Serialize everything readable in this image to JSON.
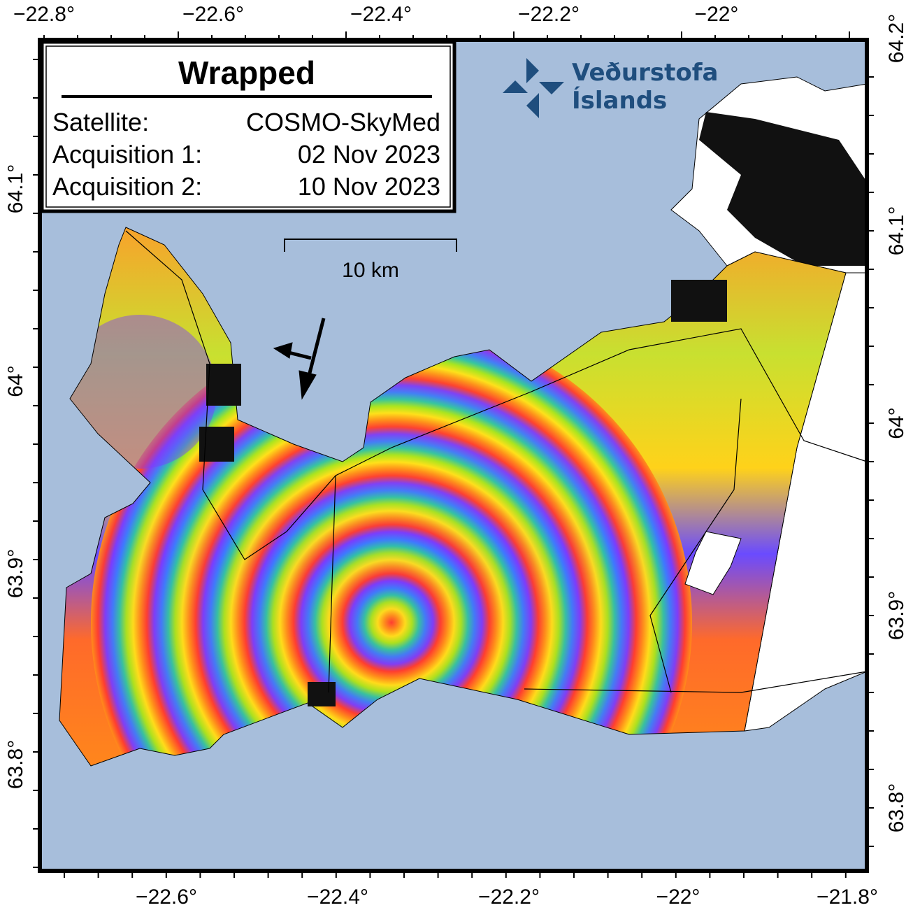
{
  "map": {
    "colors": {
      "sea": "#a7bedb",
      "frame": "#000000",
      "land_uncovered": "#ffffff",
      "logo": "#1f4e7e"
    },
    "fringe_palette": [
      "#ff3b30",
      "#ff8c1a",
      "#ffe11a",
      "#a8e61e",
      "#2ec4a6",
      "#3b7bff",
      "#7a3bff",
      "#c03bff"
    ]
  },
  "legend": {
    "title": "Wrapped",
    "rows": [
      {
        "label": "Satellite:",
        "value": "COSMO-SkyMed"
      },
      {
        "label": "Acquisition 1:",
        "value": "02 Nov 2023"
      },
      {
        "label": "Acquisition 2:",
        "value": "10 Nov 2023"
      }
    ]
  },
  "scale_bar": {
    "label": "10 km"
  },
  "logo": {
    "line1": "Veðurstofa",
    "line2": "Íslands"
  },
  "axes": {
    "top": [
      "−22.8°",
      "−22.6°",
      "−22.4°",
      "−22.2°",
      "−22°"
    ],
    "bottom": [
      "−22.6°",
      "−22.4°",
      "−22.2°",
      "−22°",
      "−21.8°"
    ],
    "left": [
      "64.1°",
      "64°",
      "63.9°",
      "63.8°"
    ],
    "right": [
      "64.2°",
      "64.1°",
      "64°",
      "63.9°",
      "63.8°"
    ]
  }
}
